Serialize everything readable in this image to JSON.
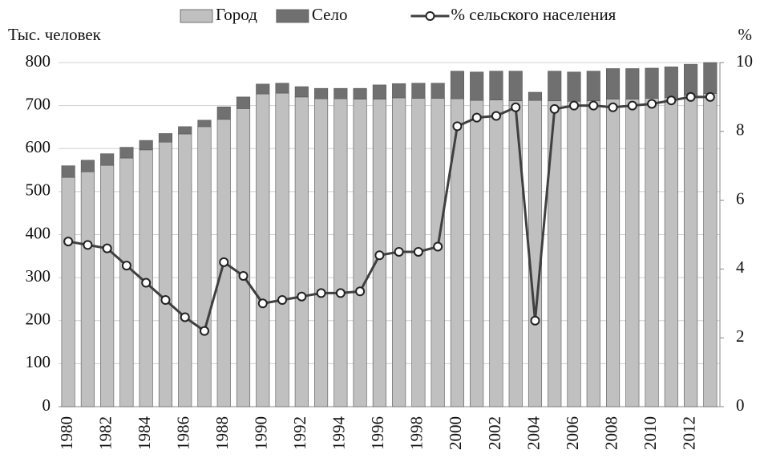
{
  "chart_data": {
    "type": "stacked_bar_line",
    "y_label": "Тыс. человек",
    "y2_label": "%",
    "categories": [
      "1980",
      null,
      "1982",
      null,
      "1984",
      null,
      "1986",
      null,
      "1988",
      null,
      "1990",
      null,
      "1992",
      null,
      "1994",
      null,
      "1996",
      null,
      "1998",
      null,
      "2000",
      null,
      "2002",
      null,
      "2004",
      null,
      "2006",
      null,
      "2008",
      null,
      "2010",
      null,
      "2012",
      null
    ],
    "series": [
      {
        "name": "Город",
        "color": "#c0c0c0",
        "type": "bar",
        "values": [
          533,
          546,
          561,
          578,
          597,
          615,
          634,
          651,
          668,
          693,
          727,
          729,
          720,
          716,
          716,
          715,
          715,
          718,
          717,
          717,
          716,
          712,
          713,
          711,
          712,
          711,
          710,
          711,
          715,
          715,
          717,
          719,
          724,
          728
        ]
      },
      {
        "name": "Село",
        "color": "#707070",
        "type": "bar",
        "values": [
          27,
          27,
          27,
          25,
          22,
          20,
          17,
          15,
          29,
          27,
          23,
          23,
          24,
          24,
          24,
          25,
          33,
          33,
          35,
          35,
          64,
          66,
          67,
          69,
          19,
          69,
          68,
          69,
          71,
          71,
          70,
          71,
          72,
          72
        ]
      },
      {
        "name": "% сельского населения",
        "color": "#404040",
        "type": "line",
        "axis": "y2",
        "values": [
          4.8,
          4.7,
          4.6,
          4.1,
          3.6,
          3.1,
          2.6,
          2.2,
          4.2,
          3.8,
          3.0,
          3.1,
          3.2,
          3.3,
          3.3,
          3.35,
          4.4,
          4.5,
          4.5,
          4.65,
          8.15,
          8.4,
          8.45,
          8.7,
          2.5,
          8.65,
          8.75,
          8.75,
          8.7,
          8.75,
          8.8,
          8.9,
          9.0,
          9.0
        ]
      }
    ],
    "ylim": [
      0,
      800
    ],
    "yticks": [
      0,
      100,
      200,
      300,
      400,
      500,
      600,
      700,
      800
    ],
    "y2lim": [
      0,
      10
    ],
    "y2ticks": [
      0,
      2,
      4,
      6,
      8,
      10
    ],
    "grid": true,
    "legend": "top"
  }
}
